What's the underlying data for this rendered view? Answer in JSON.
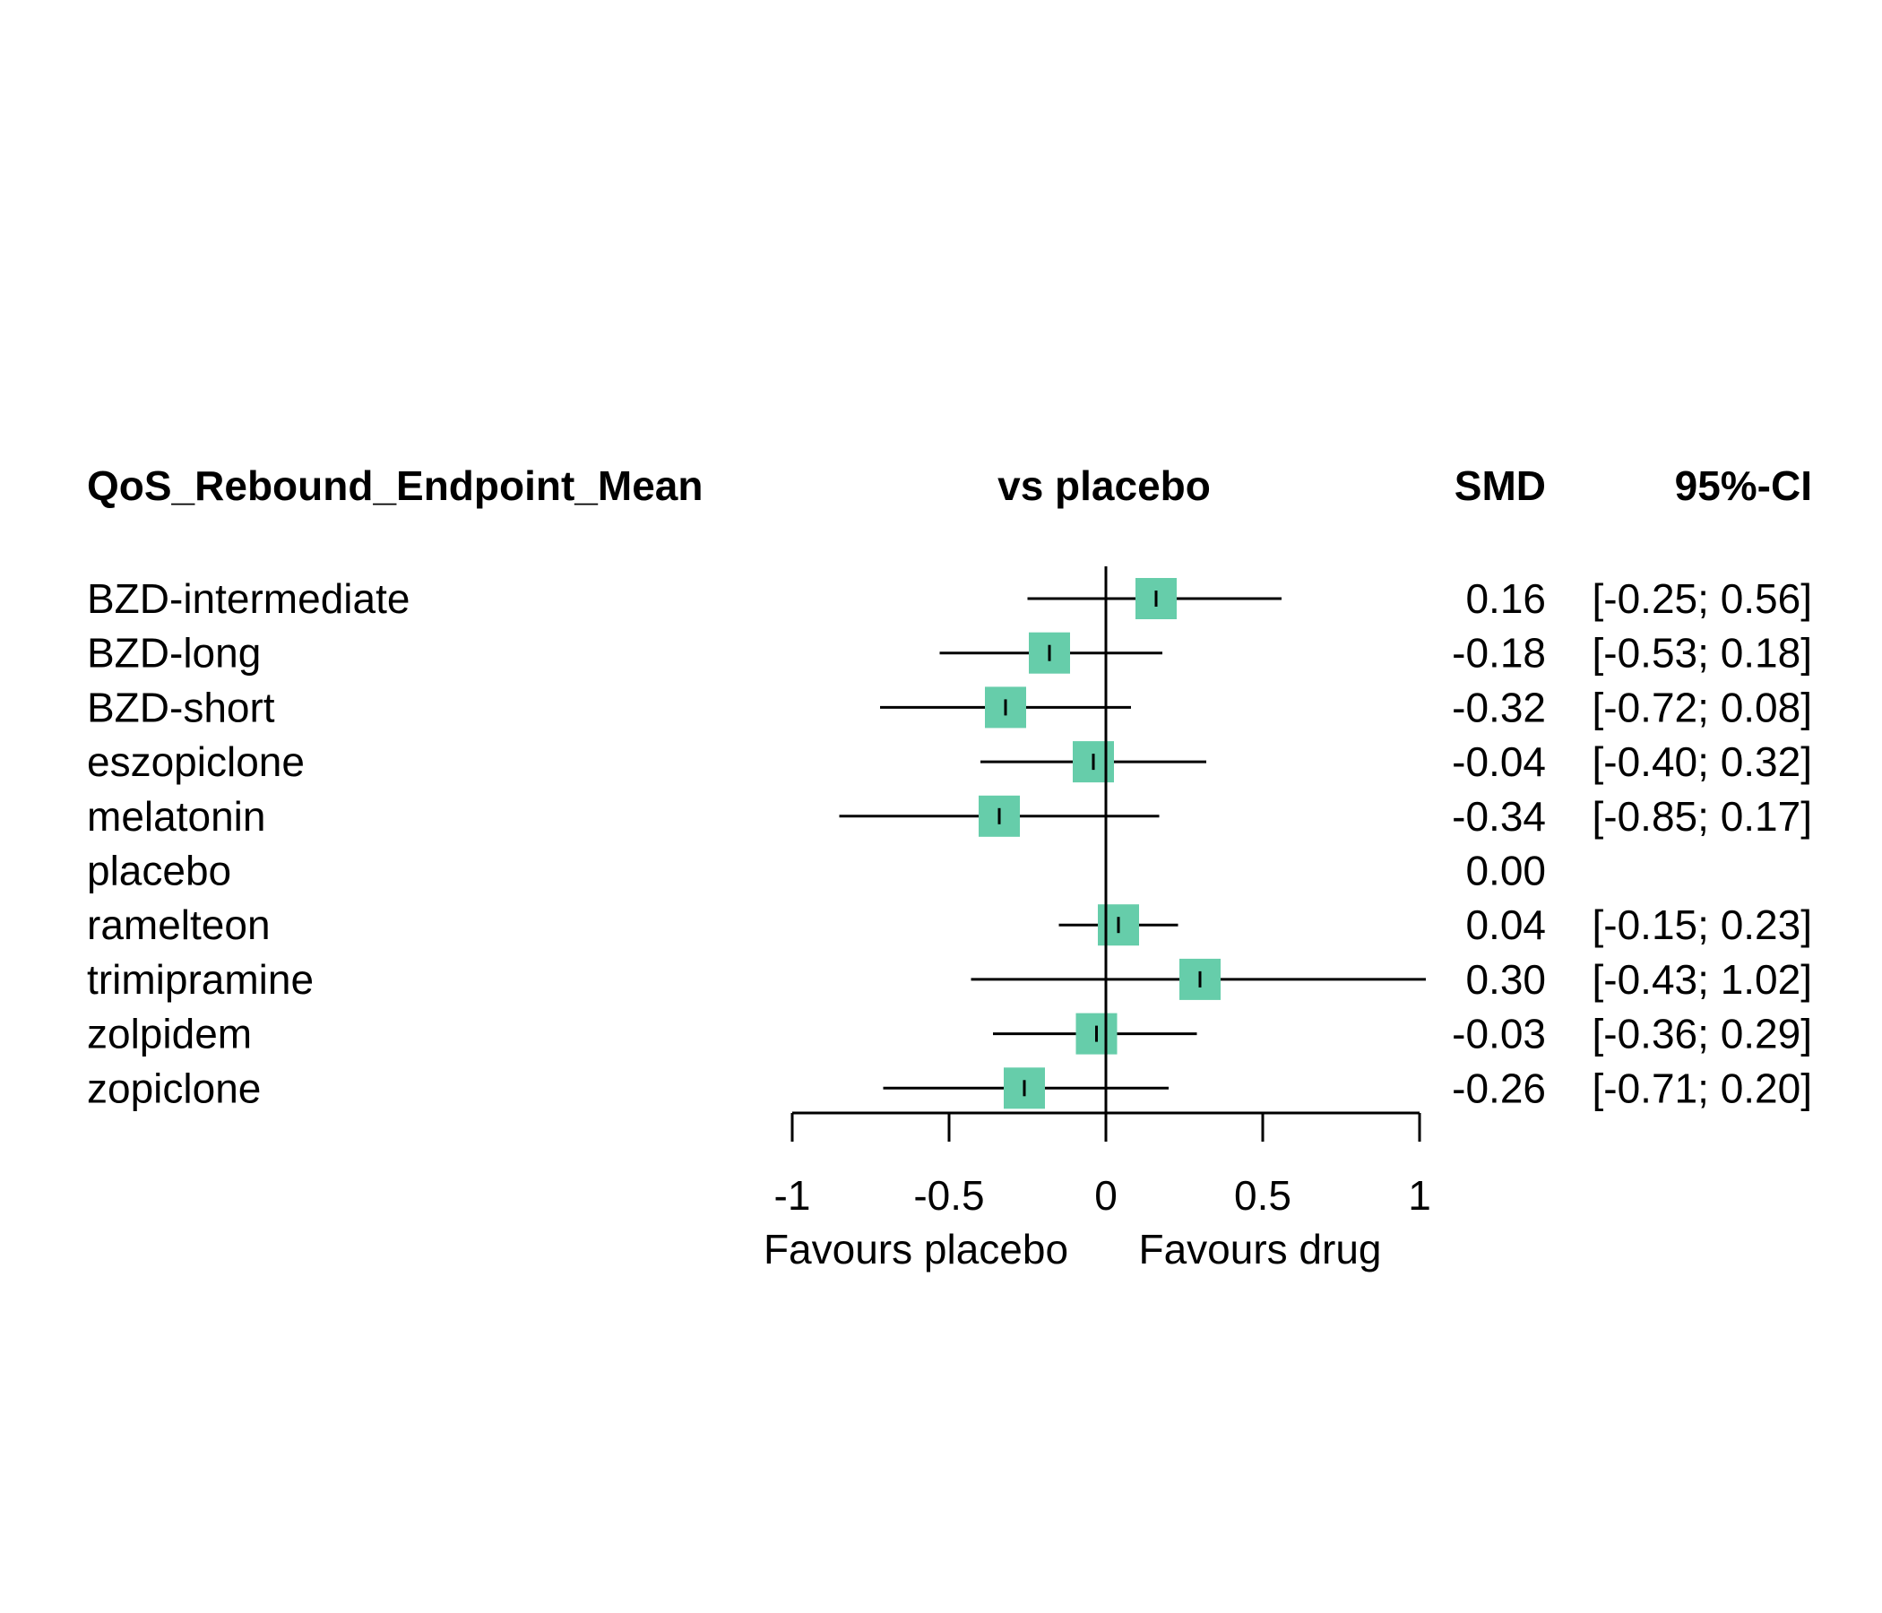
{
  "chart_data": {
    "type": "forest",
    "headers": {
      "outcome": "QoS_Rebound_Endpoint_Mean",
      "comparison": "vs placebo",
      "effect": "SMD",
      "ci": "95%-CI"
    },
    "rows": [
      {
        "treatment": "BZD-intermediate",
        "smd": 0.16,
        "lower": -0.25,
        "upper": 0.56,
        "smd_text": "0.16",
        "ci_text": "[-0.25; 0.56]"
      },
      {
        "treatment": "BZD-long",
        "smd": -0.18,
        "lower": -0.53,
        "upper": 0.18,
        "smd_text": "-0.18",
        "ci_text": "[-0.53; 0.18]"
      },
      {
        "treatment": "BZD-short",
        "smd": -0.32,
        "lower": -0.72,
        "upper": 0.08,
        "smd_text": "-0.32",
        "ci_text": "[-0.72; 0.08]"
      },
      {
        "treatment": "eszopiclone",
        "smd": -0.04,
        "lower": -0.4,
        "upper": 0.32,
        "smd_text": "-0.04",
        "ci_text": "[-0.40; 0.32]"
      },
      {
        "treatment": "melatonin",
        "smd": -0.34,
        "lower": -0.85,
        "upper": 0.17,
        "smd_text": "-0.34",
        "ci_text": "[-0.85; 0.17]"
      },
      {
        "treatment": "placebo",
        "smd": 0.0,
        "lower": null,
        "upper": null,
        "smd_text": "0.00",
        "ci_text": ""
      },
      {
        "treatment": "ramelteon",
        "smd": 0.04,
        "lower": -0.15,
        "upper": 0.23,
        "smd_text": "0.04",
        "ci_text": "[-0.15; 0.23]"
      },
      {
        "treatment": "trimipramine",
        "smd": 0.3,
        "lower": -0.43,
        "upper": 1.02,
        "smd_text": "0.30",
        "ci_text": "[-0.43; 1.02]"
      },
      {
        "treatment": "zolpidem",
        "smd": -0.03,
        "lower": -0.36,
        "upper": 0.29,
        "smd_text": "-0.03",
        "ci_text": "[-0.36; 0.29]"
      },
      {
        "treatment": "zopiclone",
        "smd": -0.26,
        "lower": -0.71,
        "upper": 0.2,
        "smd_text": "-0.26",
        "ci_text": "[-0.71; 0.20]"
      }
    ],
    "x_ticks": [
      -1,
      -0.5,
      0,
      0.5,
      1
    ],
    "x_tick_labels": [
      "-1",
      "-0.5",
      "0",
      "0.5",
      "1"
    ],
    "xlim": [
      -1,
      1
    ],
    "xlabel_left": "Favours placebo",
    "xlabel_right": "Favours drug",
    "reference_line": 0,
    "marker_color": "#66CDAA",
    "line_color": "#000000",
    "grid": false
  }
}
